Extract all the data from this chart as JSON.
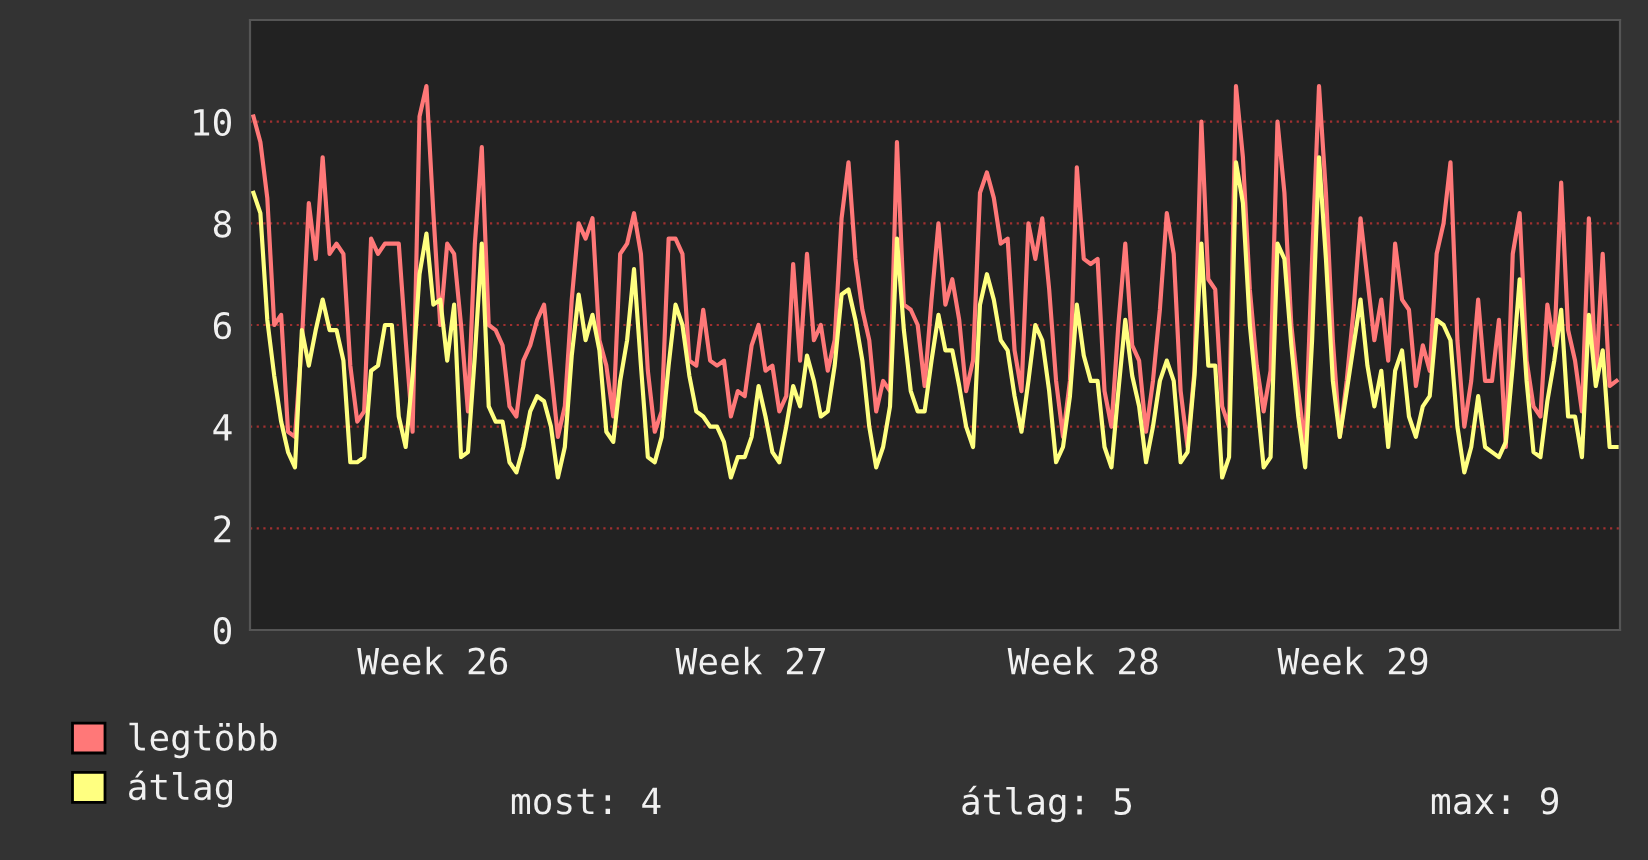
{
  "chart_data": {
    "type": "line",
    "ylim": [
      0,
      12
    ],
    "categories": [
      null,
      null,
      null,
      null,
      null,
      null,
      null,
      null,
      null,
      null,
      null,
      null,
      null,
      null,
      null,
      null,
      null,
      null,
      null,
      null,
      null,
      null,
      null,
      null,
      null,
      null,
      "Week 26",
      null,
      null,
      null,
      null,
      null,
      null,
      null,
      null,
      null,
      null,
      null,
      null,
      null,
      null,
      null,
      null,
      null,
      null,
      null,
      null,
      null,
      null,
      null,
      null,
      null,
      null,
      null,
      null,
      null,
      null,
      null,
      null,
      null,
      null,
      null,
      null,
      null,
      null,
      null,
      null,
      null,
      null,
      null,
      null,
      null,
      "Week 27",
      null,
      null,
      null,
      null,
      null,
      null,
      null,
      null,
      null,
      null,
      null,
      null,
      null,
      null,
      null,
      null,
      null,
      null,
      null,
      null,
      null,
      null,
      null,
      null,
      null,
      null,
      null,
      null,
      null,
      null,
      null,
      null,
      null,
      null,
      null,
      null,
      null,
      null,
      null,
      null,
      null,
      null,
      null,
      null,
      null,
      null,
      null,
      "Week 28",
      null,
      null,
      null,
      null,
      null,
      null,
      null,
      null,
      null,
      null,
      null,
      null,
      null,
      null,
      null,
      null,
      null,
      null,
      null,
      null,
      null,
      null,
      null,
      null,
      null,
      null,
      null,
      null,
      null,
      null,
      null,
      null,
      null,
      null,
      null,
      null,
      null,
      null,
      "Week 29",
      null,
      null,
      null,
      null,
      null,
      null,
      null,
      null,
      null,
      null,
      null,
      null,
      null,
      null,
      null,
      null,
      null,
      null,
      null,
      null,
      null,
      null,
      null,
      null,
      null,
      null,
      null,
      null,
      null,
      null,
      null,
      null,
      null,
      null,
      null,
      null,
      null,
      null
    ],
    "yticks": [
      0,
      2,
      4,
      6,
      8,
      10
    ],
    "grid": "y",
    "legend": "bottom",
    "marker": "none",
    "line_style": "solid",
    "annotations": [
      "most: 4",
      "átlag: 5",
      "max: 9"
    ],
    "series": [
      {
        "name": "legtöbb",
        "color": "#ff7878",
        "values": [
          10.1,
          9.6,
          8.5,
          6.0,
          6.2,
          3.9,
          3.8,
          5.7,
          8.4,
          7.3,
          9.3,
          7.4,
          7.6,
          7.4,
          5.2,
          4.1,
          4.3,
          7.7,
          7.4,
          7.6,
          7.6,
          7.6,
          5.7,
          3.9,
          10.1,
          10.7,
          8.2,
          6.0,
          7.6,
          7.4,
          6.0,
          4.3,
          7.6,
          9.5,
          6.0,
          5.9,
          5.6,
          4.4,
          4.2,
          5.3,
          5.6,
          6.1,
          6.4,
          5.1,
          3.8,
          4.4,
          6.5,
          8.0,
          7.7,
          8.1,
          5.7,
          5.2,
          4.2,
          7.4,
          7.6,
          8.2,
          7.4,
          5.1,
          3.9,
          4.3,
          7.7,
          7.7,
          7.4,
          5.3,
          5.2,
          6.3,
          5.3,
          5.2,
          5.3,
          4.2,
          4.7,
          4.6,
          5.6,
          6.0,
          5.1,
          5.2,
          4.3,
          4.6,
          7.2,
          5.3,
          7.4,
          5.7,
          6.0,
          5.1,
          5.7,
          8.1,
          9.2,
          7.3,
          6.3,
          5.7,
          4.3,
          4.9,
          4.7,
          9.6,
          6.4,
          6.3,
          6.0,
          4.8,
          6.5,
          8.0,
          6.4,
          6.9,
          6.1,
          4.7,
          5.3,
          8.6,
          9.0,
          8.5,
          7.6,
          7.7,
          5.5,
          4.7,
          8.0,
          7.3,
          8.1,
          6.7,
          4.9,
          3.8,
          4.9,
          9.1,
          7.3,
          7.2,
          7.3,
          4.7,
          4.0,
          6.0,
          7.6,
          5.6,
          5.3,
          3.9,
          4.9,
          6.3,
          8.2,
          7.4,
          4.7,
          3.6,
          5.1,
          10.0,
          6.9,
          6.7,
          4.4,
          4.0,
          10.7,
          9.3,
          6.7,
          5.2,
          4.3,
          5.1,
          10.0,
          8.6,
          6.0,
          4.7,
          3.6,
          7.3,
          10.7,
          8.6,
          5.7,
          3.8,
          4.9,
          6.3,
          8.1,
          6.9,
          5.7,
          6.5,
          5.3,
          7.6,
          6.5,
          6.3,
          4.8,
          5.6,
          5.1,
          7.4,
          8.0,
          9.2,
          5.7,
          4.0,
          4.9,
          6.5,
          4.9,
          4.9,
          6.1,
          3.6,
          7.4,
          8.2,
          5.3,
          4.4,
          4.2,
          6.4,
          5.6,
          8.8,
          5.9,
          5.3,
          4.3,
          8.1,
          4.9,
          7.4,
          4.8,
          4.9
        ]
      },
      {
        "name": "átlag",
        "color": "#ffff80",
        "values": [
          8.6,
          8.2,
          6.1,
          5.0,
          4.1,
          3.5,
          3.2,
          5.9,
          5.2,
          5.9,
          6.5,
          5.9,
          5.9,
          5.3,
          3.3,
          3.3,
          3.4,
          5.1,
          5.2,
          6.0,
          6.0,
          4.2,
          3.6,
          5.0,
          7.0,
          7.8,
          6.4,
          6.5,
          5.3,
          6.4,
          3.4,
          3.5,
          5.4,
          7.6,
          4.4,
          4.1,
          4.1,
          3.3,
          3.1,
          3.6,
          4.3,
          4.6,
          4.5,
          4.0,
          3.0,
          3.6,
          5.4,
          6.6,
          5.7,
          6.2,
          5.5,
          3.9,
          3.7,
          4.9,
          5.7,
          7.1,
          5.2,
          3.4,
          3.3,
          3.8,
          5.2,
          6.4,
          6.0,
          5.0,
          4.3,
          4.2,
          4.0,
          4.0,
          3.7,
          3.0,
          3.4,
          3.4,
          3.8,
          4.8,
          4.2,
          3.5,
          3.3,
          4.0,
          4.8,
          4.4,
          5.4,
          4.9,
          4.2,
          4.3,
          5.2,
          6.6,
          6.7,
          6.1,
          5.3,
          4.0,
          3.2,
          3.6,
          4.4,
          7.7,
          5.9,
          4.7,
          4.3,
          4.3,
          5.3,
          6.2,
          5.5,
          5.5,
          4.8,
          4.0,
          3.6,
          6.4,
          7.0,
          6.5,
          5.7,
          5.5,
          4.6,
          3.9,
          4.9,
          6.0,
          5.7,
          4.7,
          3.3,
          3.6,
          4.6,
          6.4,
          5.4,
          4.9,
          4.9,
          3.6,
          3.2,
          4.7,
          6.1,
          5.0,
          4.4,
          3.3,
          4.0,
          4.9,
          5.3,
          4.9,
          3.3,
          3.5,
          5.0,
          7.6,
          5.2,
          5.2,
          3.0,
          3.4,
          9.2,
          8.4,
          6.0,
          4.6,
          3.2,
          3.4,
          7.6,
          7.3,
          5.6,
          4.2,
          3.2,
          5.7,
          9.3,
          7.3,
          4.9,
          3.8,
          4.7,
          5.6,
          6.5,
          5.2,
          4.4,
          5.1,
          3.6,
          5.1,
          5.5,
          4.2,
          3.8,
          4.4,
          4.6,
          6.1,
          6.0,
          5.7,
          4.0,
          3.1,
          3.6,
          4.6,
          3.6,
          3.5,
          3.4,
          3.7,
          5.2,
          6.9,
          4.9,
          3.5,
          3.4,
          4.5,
          5.3,
          6.3,
          4.2,
          4.2,
          3.4,
          6.2,
          4.8,
          5.5,
          3.6,
          3.6
        ]
      }
    ]
  }
}
